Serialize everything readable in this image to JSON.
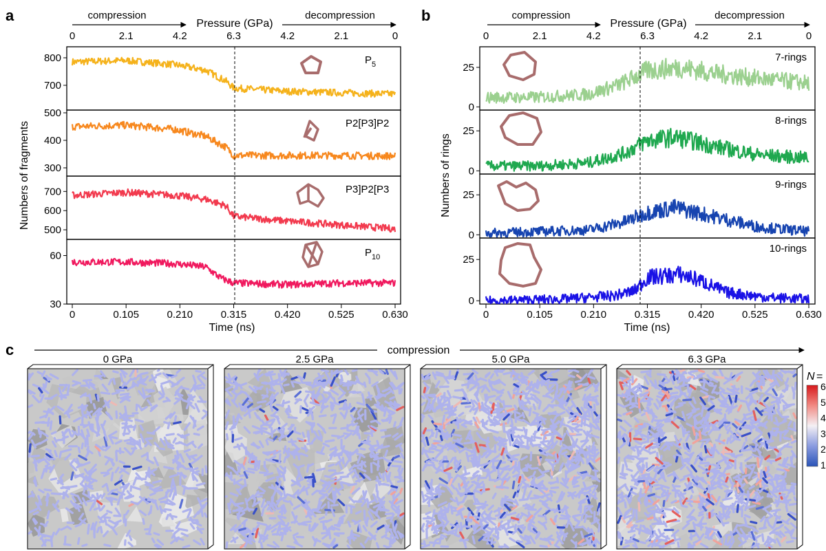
{
  "chart_data": [
    {
      "panel_label": "a",
      "type": "line",
      "ylabel": "Numbers of fragments",
      "xlabel": "Time (ns)",
      "xlim": [
        0,
        0.63
      ],
      "x_ticks": [
        "0",
        "0.105",
        "0.210",
        "0.315",
        "0.420",
        "0.525",
        "0.630"
      ],
      "top_axis": {
        "title": "Pressure (GPa)",
        "ticks": [
          "0",
          "2.1",
          "4.2",
          "6.3",
          "4.2",
          "2.1",
          "0"
        ],
        "left_arrow": "compression",
        "right_arrow": "decompression"
      },
      "transition_x": 0.315,
      "series": [
        {
          "name": "P5",
          "label_main": "P",
          "label_sub": "5",
          "color": "#f5b21b",
          "ylim": [
            610,
            840
          ],
          "yticks": [
            "700",
            "800"
          ],
          "points": [
            [
              0,
              785
            ],
            [
              0.105,
              790
            ],
            [
              0.2,
              775
            ],
            [
              0.26,
              755
            ],
            [
              0.3,
              715
            ],
            [
              0.315,
              690
            ],
            [
              0.42,
              678
            ],
            [
              0.525,
              673
            ],
            [
              0.63,
              668
            ]
          ]
        },
        {
          "name": "P2[P3]P2",
          "label_main": "P2[P3]P2",
          "label_sub": "",
          "color": "#f7881e",
          "ylim": [
            270,
            510
          ],
          "yticks": [
            "300",
            "400",
            "500"
          ],
          "points": [
            [
              0,
              450
            ],
            [
              0.105,
              455
            ],
            [
              0.2,
              440
            ],
            [
              0.26,
              415
            ],
            [
              0.3,
              375
            ],
            [
              0.315,
              345
            ],
            [
              0.42,
              345
            ],
            [
              0.525,
              345
            ],
            [
              0.63,
              343
            ]
          ]
        },
        {
          "name": "P3]P2[P3",
          "label_main": "P3]P2[P3",
          "label_sub": "",
          "color": "#f23a4e",
          "ylim": [
            450,
            780
          ],
          "yticks": [
            "500",
            "600",
            "700"
          ],
          "points": [
            [
              0,
              680
            ],
            [
              0.105,
              695
            ],
            [
              0.2,
              680
            ],
            [
              0.26,
              660
            ],
            [
              0.3,
              625
            ],
            [
              0.315,
              570
            ],
            [
              0.42,
              545
            ],
            [
              0.525,
              525
            ],
            [
              0.63,
              505
            ]
          ]
        },
        {
          "name": "P10",
          "label_main": "P",
          "label_sub": "10",
          "color": "#f0195e",
          "ylim": [
            30,
            70
          ],
          "yticks": [
            "30",
            "60"
          ],
          "points": [
            [
              0,
              56
            ],
            [
              0.105,
              56
            ],
            [
              0.2,
              55
            ],
            [
              0.26,
              53
            ],
            [
              0.29,
              46
            ],
            [
              0.315,
              43
            ],
            [
              0.42,
              42
            ],
            [
              0.525,
              43
            ],
            [
              0.63,
              43
            ]
          ]
        }
      ]
    },
    {
      "panel_label": "b",
      "type": "line",
      "ylabel": "Numbers of rings",
      "xlabel": "Time (ns)",
      "xlim": [
        0,
        0.63
      ],
      "x_ticks": [
        "0",
        "0.105",
        "0.210",
        "0.315",
        "0.420",
        "0.525",
        "0.630"
      ],
      "top_axis": {
        "title": "Pressure (GPa)",
        "ticks": [
          "0",
          "2.1",
          "4.2",
          "6.3",
          "4.2",
          "2.1",
          "0"
        ],
        "left_arrow": "compression",
        "right_arrow": "decompression"
      },
      "transition_x": 0.3,
      "series": [
        {
          "name": "7-rings",
          "color": "#9bd08f",
          "ylim": [
            -2,
            38
          ],
          "yticks": [
            "0",
            "25"
          ],
          "points": [
            [
              0,
              6
            ],
            [
              0.1,
              6
            ],
            [
              0.2,
              8
            ],
            [
              0.26,
              14
            ],
            [
              0.315,
              23
            ],
            [
              0.38,
              25
            ],
            [
              0.45,
              21
            ],
            [
              0.53,
              18
            ],
            [
              0.63,
              15
            ]
          ]
        },
        {
          "name": "8-rings",
          "color": "#1fa84f",
          "ylim": [
            -2,
            38
          ],
          "yticks": [
            "0",
            "25"
          ],
          "points": [
            [
              0,
              3
            ],
            [
              0.1,
              3
            ],
            [
              0.2,
              5
            ],
            [
              0.27,
              11
            ],
            [
              0.315,
              19
            ],
            [
              0.37,
              21
            ],
            [
              0.45,
              15
            ],
            [
              0.53,
              10
            ],
            [
              0.63,
              8
            ]
          ]
        },
        {
          "name": "9-rings",
          "color": "#1744b0",
          "ylim": [
            -2,
            38
          ],
          "yticks": [
            "0",
            "25"
          ],
          "points": [
            [
              0,
              1
            ],
            [
              0.1,
              2
            ],
            [
              0.2,
              3
            ],
            [
              0.27,
              8
            ],
            [
              0.315,
              14
            ],
            [
              0.37,
              17
            ],
            [
              0.45,
              11
            ],
            [
              0.53,
              5
            ],
            [
              0.63,
              2
            ]
          ]
        },
        {
          "name": "10-rings",
          "color": "#1a12e6",
          "ylim": [
            -2,
            38
          ],
          "yticks": [
            "0",
            "25"
          ],
          "points": [
            [
              0,
              0
            ],
            [
              0.15,
              1
            ],
            [
              0.25,
              3
            ],
            [
              0.29,
              6
            ],
            [
              0.315,
              14
            ],
            [
              0.38,
              16
            ],
            [
              0.42,
              12
            ],
            [
              0.47,
              5
            ],
            [
              0.55,
              2
            ],
            [
              0.63,
              1
            ]
          ]
        }
      ]
    }
  ],
  "panel_c": {
    "label": "c",
    "arrow_label": "compression",
    "snapshots": [
      {
        "label": "0 GPa",
        "red_share": 0.01,
        "dark_share": 0.04,
        "density": 0.55
      },
      {
        "label": "2.5 GPa",
        "red_share": 0.02,
        "dark_share": 0.05,
        "density": 0.75
      },
      {
        "label": "5.0 GPa",
        "red_share": 0.06,
        "dark_share": 0.07,
        "density": 1.0
      },
      {
        "label": "6.3 GPa",
        "red_share": 0.1,
        "dark_share": 0.07,
        "density": 1.0
      }
    ],
    "colorbar": {
      "title_main": "N",
      "title_suffix": "=",
      "ticks": [
        "6",
        "5",
        "4",
        "3",
        "2",
        "1"
      ],
      "colors": [
        "#d7191c",
        "#f18a83",
        "#f5dada",
        "#e8e8f5",
        "#7a8fd6",
        "#2a54b8"
      ]
    }
  }
}
